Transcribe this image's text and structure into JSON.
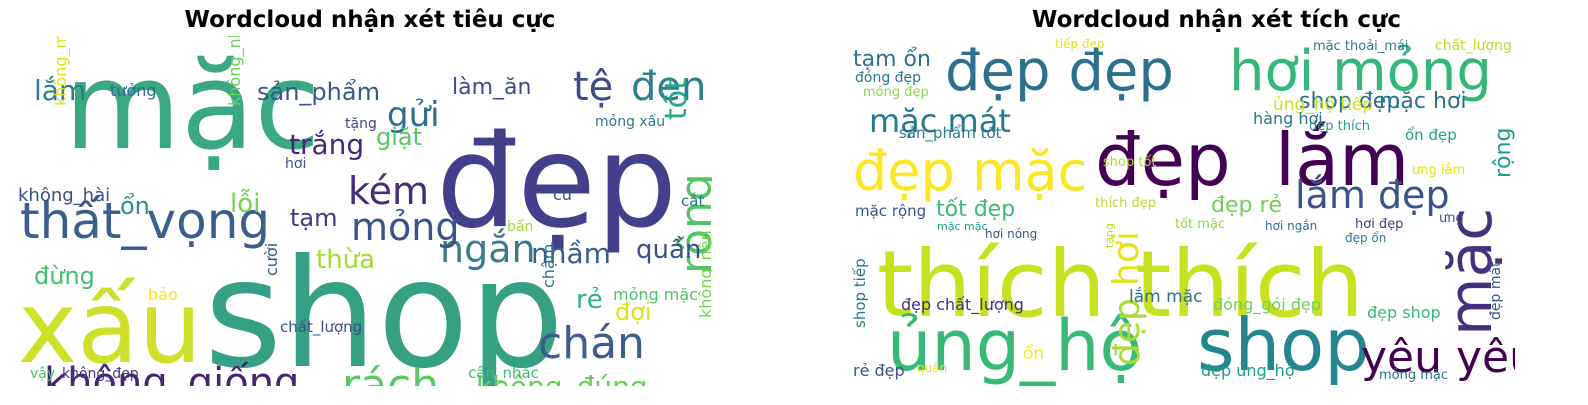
{
  "chart_data": [
    {
      "type": "wordcloud",
      "title": "Wordcloud nhận xét tiêu cực",
      "words": [
        {
          "text": "mặc",
          "color": "#3aa785"
        },
        {
          "text": "đẹp",
          "color": "#433f8a"
        },
        {
          "text": "shop",
          "color": "#35a084"
        },
        {
          "text": "xấu",
          "color": "#cfe02a"
        },
        {
          "text": "thất_vọng",
          "color": "#3a5f8e"
        },
        {
          "text": "không_giống",
          "color": "#482475"
        },
        {
          "text": "rách",
          "color": "#5dc863"
        },
        {
          "text": "tệ",
          "color": "#3f4a8a"
        },
        {
          "text": "đen",
          "color": "#2e7f8e"
        },
        {
          "text": "chán",
          "color": "#3e5c8d"
        },
        {
          "text": "ngắn",
          "color": "#3b7c8c"
        },
        {
          "text": "kém",
          "color": "#472c7a"
        },
        {
          "text": "mỏng",
          "color": "#3b528b"
        },
        {
          "text": "không_đúng",
          "color": "#6ccd5a"
        },
        {
          "text": "rộng",
          "color": "#52c569"
        },
        {
          "text": "gửi",
          "color": "#2f6e8e"
        },
        {
          "text": "nhầm",
          "color": "#33628d"
        },
        {
          "text": "quần",
          "color": "#3c4f8a"
        },
        {
          "text": "lắm",
          "color": "#2c7e8e"
        },
        {
          "text": "sản_phẩm",
          "color": "#37588c"
        },
        {
          "text": "trắng",
          "color": "#472878"
        },
        {
          "text": "giặt",
          "color": "#5ac864"
        },
        {
          "text": "làm_ăn",
          "color": "#3d4c89"
        },
        {
          "text": "tốt",
          "color": "#23a983"
        },
        {
          "text": "lỗi",
          "color": "#7ad151"
        },
        {
          "text": "tạm",
          "color": "#453781"
        },
        {
          "text": "thừa",
          "color": "#a2db34"
        },
        {
          "text": "ổn",
          "color": "#2d8f89"
        },
        {
          "text": "đừng",
          "color": "#42be71"
        },
        {
          "text": "rẻ",
          "color": "#2db27d"
        },
        {
          "text": "đợi",
          "color": "#dde318"
        },
        {
          "text": "không_hài",
          "color": "#3d4e8a"
        },
        {
          "text": "tưởng",
          "color": "#2f6f8e"
        },
        {
          "text": "không_mặc",
          "color": "#e2e418"
        },
        {
          "text": "không_như",
          "color": "#6ccd5a"
        },
        {
          "text": "hơi",
          "color": "#3b528b"
        },
        {
          "text": "tặng",
          "color": "#404688"
        },
        {
          "text": "mỏng xấu",
          "color": "#2a788e"
        },
        {
          "text": "cũ",
          "color": "#3c4f8a"
        },
        {
          "text": "cắt",
          "color": "#2c728e"
        },
        {
          "text": "bẩn",
          "color": "#9fda3a"
        },
        {
          "text": "mỏng mặc",
          "color": "#4ac16d"
        },
        {
          "text": "bảo",
          "color": "#fde725"
        },
        {
          "text": "chậm",
          "color": "#2c728e"
        },
        {
          "text": "cười",
          "color": "#38598c"
        },
        {
          "text": "chất_lượng",
          "color": "#3d4e8a"
        },
        {
          "text": "không_nên",
          "color": "#7ad151"
        },
        {
          "text": "vậy",
          "color": "#4ac16d"
        },
        {
          "text": "không_đẹp",
          "color": "#453581"
        },
        {
          "text": "cân_nhắc",
          "color": "#3fbc73"
        }
      ]
    },
    {
      "type": "wordcloud",
      "title": "Wordcloud nhận xét tích cực",
      "words": [
        {
          "text": "đẹp đẹp",
          "color": "#2d708e"
        },
        {
          "text": "hơi mỏng",
          "color": "#35b779"
        },
        {
          "text": "đẹp",
          "color": "#440154"
        },
        {
          "text": "lắm",
          "color": "#440154"
        },
        {
          "text": "đẹp mặc",
          "color": "#fde725"
        },
        {
          "text": "thích thích",
          "color": "#c7e020"
        },
        {
          "text": "ủng_hộ",
          "color": "#38b977"
        },
        {
          "text": "shop",
          "color": "#25858e"
        },
        {
          "text": "mặc",
          "color": "#46307e"
        },
        {
          "text": "yêu yêu",
          "color": "#440154"
        },
        {
          "text": "lắm đẹp",
          "color": "#3b528b"
        },
        {
          "text": "mặc mát",
          "color": "#2a788e"
        },
        {
          "text": "mặc hơi",
          "color": "#2c728e"
        },
        {
          "text": "shop đẹp",
          "color": "#2c728e"
        },
        {
          "text": "tạm ổn",
          "color": "#2c728e"
        },
        {
          "text": "tốt đẹp",
          "color": "#3aba76"
        },
        {
          "text": "hơi",
          "color": "#e5e419"
        },
        {
          "text": "đẹp",
          "color": "#a8db34"
        },
        {
          "text": "rộng",
          "color": "#1f9e89"
        },
        {
          "text": "đẹp rẻ",
          "color": "#73d056"
        },
        {
          "text": "ủng_hộ tiếp",
          "color": "#cde11d"
        },
        {
          "text": "đóng đẹp",
          "color": "#2a788e"
        },
        {
          "text": "mỏng đẹp",
          "color": "#8fd744"
        },
        {
          "text": "tiếp đẹp",
          "color": "#e5e419"
        },
        {
          "text": "mặc thoải_mái",
          "color": "#2a788e"
        },
        {
          "text": "chất_lượng tốt",
          "color": "#b5de2b"
        },
        {
          "text": "sản_phẩm tốt",
          "color": "#2a788e"
        },
        {
          "text": "đẹp thích",
          "color": "#1f9e89"
        },
        {
          "text": "hàng hơi",
          "color": "#2c728e"
        },
        {
          "text": "ổn đẹp",
          "color": "#1f9e89"
        },
        {
          "text": "shop tốt",
          "color": "#a8db34"
        },
        {
          "text": "ưng lắm",
          "color": "#e5e419"
        },
        {
          "text": "mặc rộng",
          "color": "#3b528b"
        },
        {
          "text": "thích đẹp",
          "color": "#b5de2b"
        },
        {
          "text": "mặc mặc",
          "color": "#1f9e89"
        },
        {
          "text": "tốt mặc",
          "color": "#8fd744"
        },
        {
          "text": "hơi ngắn",
          "color": "#2c728e"
        },
        {
          "text": "hơi đẹp",
          "color": "#443983"
        },
        {
          "text": "ưng",
          "color": "#3b528b"
        },
        {
          "text": "hơi nóng",
          "color": "#3b528b"
        },
        {
          "text": "tặng",
          "color": "#b5de2b"
        },
        {
          "text": "đẹp ổn",
          "color": "#2a788e"
        },
        {
          "text": "đẹp mát",
          "color": "#3b528b"
        },
        {
          "text": "shop tiếp",
          "color": "#2a788e"
        },
        {
          "text": "đẹp chất_lượng",
          "color": "#46307e"
        },
        {
          "text": "lắm mặc",
          "color": "#2c728e"
        },
        {
          "text": "đóng_gói đẹp",
          "color": "#73d056"
        },
        {
          "text": "đẹp shop",
          "color": "#35b779"
        },
        {
          "text": "ổn",
          "color": "#fde725"
        },
        {
          "text": "rẻ đẹp",
          "color": "#3b528b"
        },
        {
          "text": "quần",
          "color": "#e5e419"
        },
        {
          "text": "đẹp ủng_hộ",
          "color": "#1f9e89"
        },
        {
          "text": "mỏng mặc",
          "color": "#2c728e"
        }
      ]
    }
  ]
}
